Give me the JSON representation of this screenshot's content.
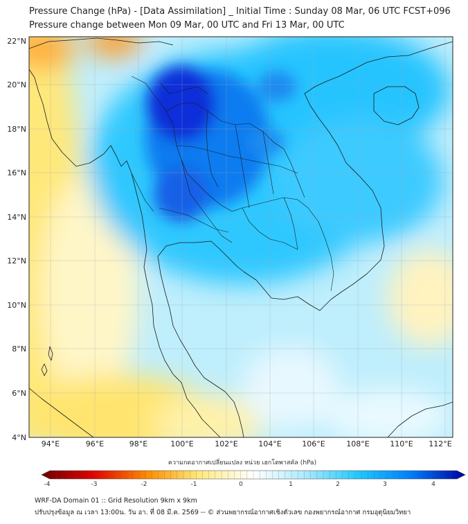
{
  "title_line1": "Pressure Change (hPa) - [Data Assimilation] _ Initial Time : Sunday 08 Mar, 06 UTC FCST+096",
  "title_line2": "Pressure change between Mon 09 Mar, 00 UTC and Fri 13 Mar, 00 UTC",
  "lat_ticks": [
    "22°N",
    "20°N",
    "18°N",
    "16°N",
    "14°N",
    "12°N",
    "10°N",
    "8°N",
    "6°N",
    "4°N"
  ],
  "lon_ticks": [
    "94°E",
    "96°E",
    "98°E",
    "100°E",
    "102°E",
    "104°E",
    "106°E",
    "108°E",
    "110°E",
    "112°E"
  ],
  "colorbar": {
    "label": "ความกดอากาศเปลี่ยนแปลง หน่วย เฮกโตพาสคัล (hPa)",
    "ticks": [
      "-4",
      "-3",
      "-2",
      "-1",
      "0",
      "1",
      "2",
      "3",
      "4"
    ],
    "range": [
      -4,
      4
    ]
  },
  "footer_line1": "WRF-DA Domain 01 :: Grid Resolution 9km x 9km",
  "footer_line2": "ปรับปรุงข้อมูล ณ เวลา 13:00น. วัน อา. ที่ 08 มี.ค. 2569 -- © ส่วนพยากรณ์อากาศเชิงตัวเลข กองพยากรณ์อากาศ กรมอุตุนิยมวิทยา",
  "colors": {
    "neg_strong": "#8b0000",
    "neg": "#ff8c00",
    "neutral": "#ffffff",
    "pos": "#1ec8ff",
    "pos_strong": "#0000a0"
  }
}
